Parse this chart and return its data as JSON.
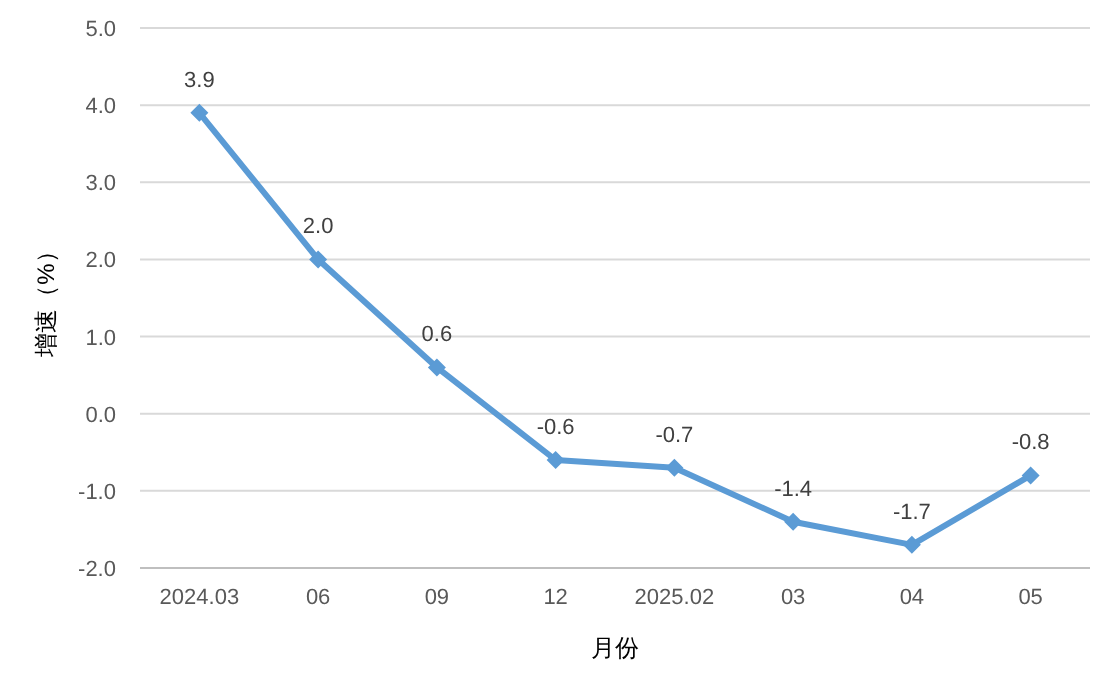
{
  "chart_data": {
    "type": "line",
    "xlabel": "月份",
    "ylabel": "增速（%）",
    "categories": [
      "2024.03",
      "06",
      "09",
      "12",
      "2025.02",
      "03",
      "04",
      "05"
    ],
    "series": [
      {
        "color": "#5b9bd5",
        "values": [
          3.9,
          2.0,
          0.6,
          -0.6,
          -0.7,
          -1.4,
          -1.7,
          -0.8
        ],
        "value_labels": [
          "3.9",
          "2.0",
          "0.6",
          "-0.6",
          "-0.7",
          "-1.4",
          "-1.7",
          "-0.8"
        ]
      }
    ],
    "ylim": [
      -2,
      5
    ],
    "yticks": [
      {
        "value": -2,
        "label": "-2.0"
      },
      {
        "value": -1,
        "label": "-1.0"
      },
      {
        "value": 0,
        "label": "0.0"
      },
      {
        "value": 1,
        "label": "1.0"
      },
      {
        "value": 2,
        "label": "2.0"
      },
      {
        "value": 3,
        "label": "3.0"
      },
      {
        "value": 4,
        "label": "4.0"
      },
      {
        "value": 5,
        "label": "5.0"
      }
    ],
    "grid": "y",
    "marker": "diamond",
    "line_style": "solid"
  }
}
